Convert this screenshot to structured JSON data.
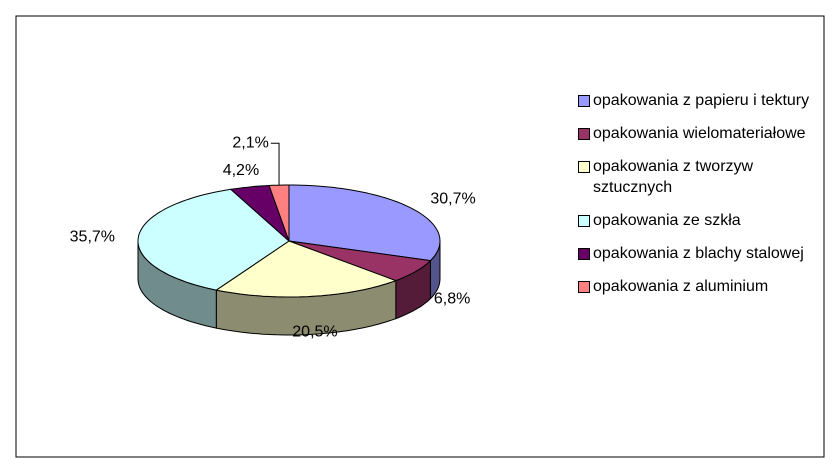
{
  "chart_data": {
    "type": "pie3d",
    "categories": [
      "opakowania z papieru i tektury",
      "opakowania wielomateriałowe",
      "opakowania z tworzyw sztucznych",
      "opakowania ze szkła",
      "opakowania z blachy stalowej",
      "opakowania z aluminium"
    ],
    "values": [
      30.7,
      6.8,
      20.5,
      35.7,
      4.2,
      2.1
    ],
    "value_labels": [
      "30,7%",
      "6,8%",
      "20,5%",
      "35,7%",
      "4,2%",
      "2,1%"
    ],
    "colors": [
      "#9999ff",
      "#993366",
      "#ffffcc",
      "#ccffff",
      "#660066",
      "#ff8080"
    ],
    "legend": "right"
  }
}
